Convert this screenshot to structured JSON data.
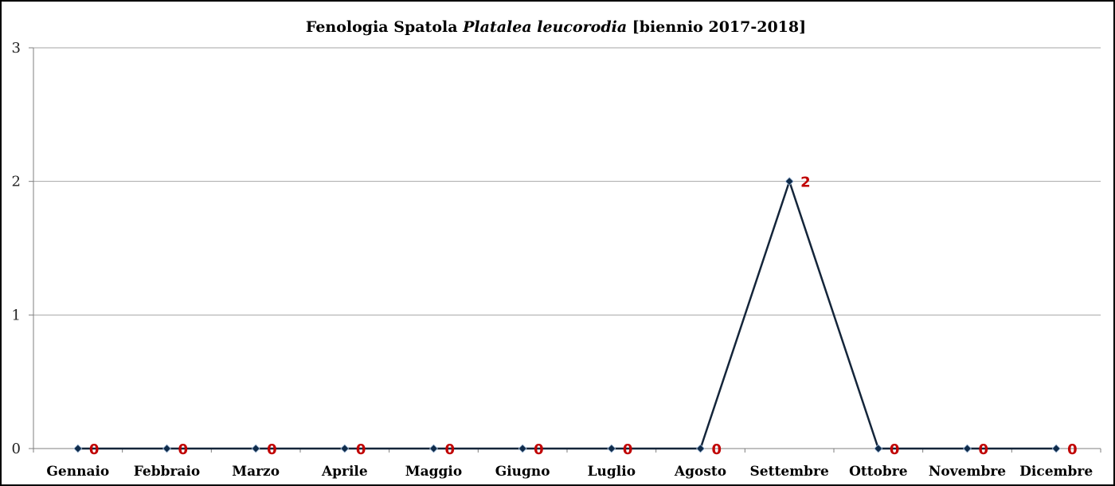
{
  "chart_data": {
    "type": "line",
    "title": {
      "prefix": "Fenologia Spatola ",
      "italic": "Platalea leucorodia",
      "suffix": " [biennio 2017-2018]"
    },
    "categories": [
      "Gennaio",
      "Febbraio",
      "Marzo",
      "Aprile",
      "Maggio",
      "Giugno",
      "Luglio",
      "Agosto",
      "Settembre",
      "Ottobre",
      "Novembre",
      "Dicembre"
    ],
    "series": [
      {
        "values": [
          0,
          0,
          0,
          0,
          0,
          0,
          0,
          0,
          2,
          0,
          0,
          0
        ]
      }
    ],
    "ylim": [
      0,
      3
    ],
    "yticks": [
      "0",
      "1",
      "2",
      "3"
    ],
    "grid": true,
    "legend": "none",
    "data_labels": true,
    "colors": {
      "line": "#14253a",
      "marker": "#0f2b4a",
      "data_label": "#c00000",
      "grid": "#a6a6a6",
      "axis": "#7f7f7f"
    }
  }
}
